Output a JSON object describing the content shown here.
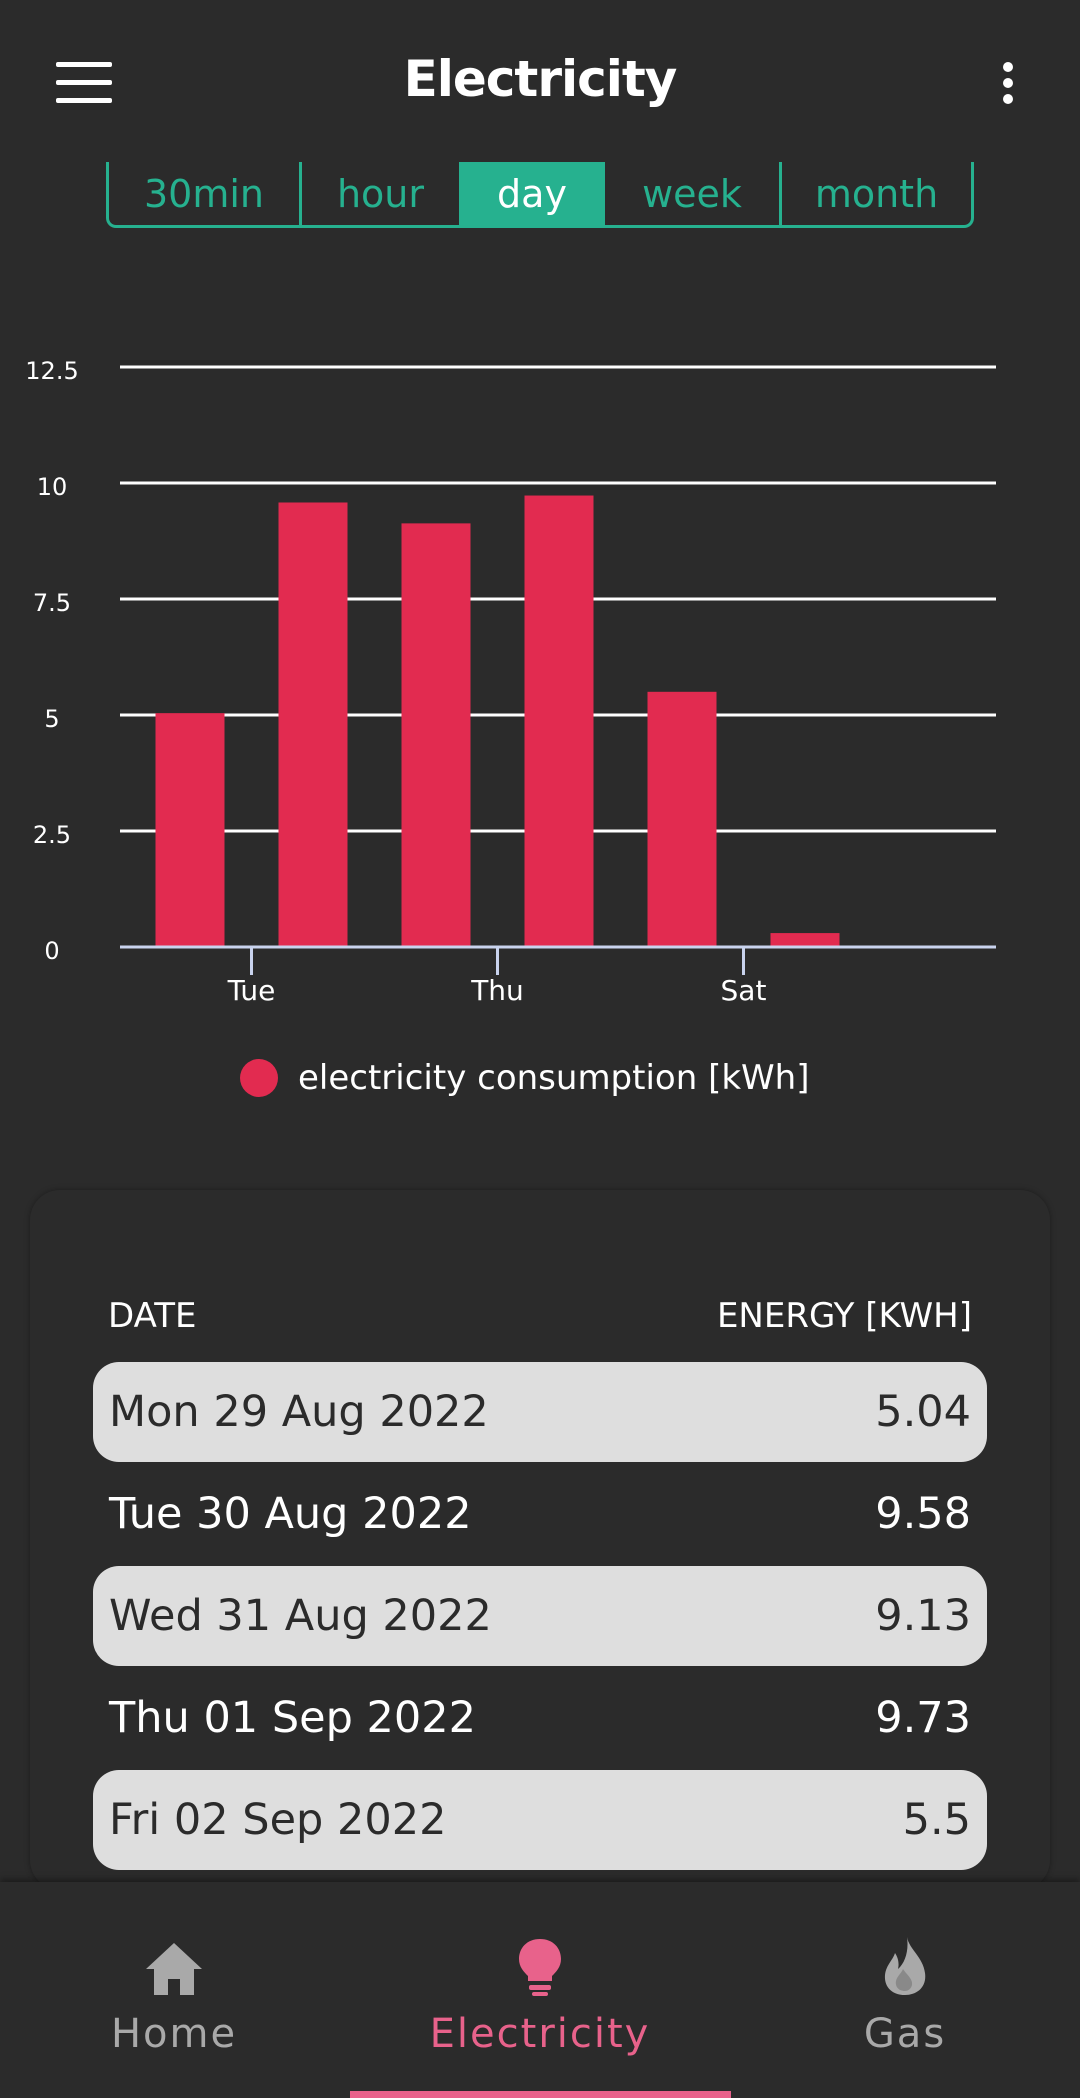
{
  "header": {
    "title": "Electricity",
    "menu_icon": "hamburger-menu-icon",
    "more_icon": "more-vertical-icon"
  },
  "tabs": [
    {
      "label": "30min",
      "active": false
    },
    {
      "label": "hour",
      "active": false
    },
    {
      "label": "day",
      "active": true
    },
    {
      "label": "week",
      "active": false
    },
    {
      "label": "month",
      "active": false
    }
  ],
  "chart_data": {
    "type": "bar",
    "categories": [
      "Mon",
      "Tue",
      "Wed",
      "Thu",
      "Fri",
      "Sat"
    ],
    "tick_labels": [
      "Tue",
      "Thu",
      "Sat"
    ],
    "series": [
      {
        "name": "electricity consumption [kWh]",
        "values": [
          5.04,
          9.58,
          9.13,
          9.73,
          5.5,
          0.3
        ],
        "color": "#e22b50"
      }
    ],
    "yticks": [
      "0",
      "2.5",
      "5",
      "7.5",
      "10",
      "12.5"
    ],
    "ylim": [
      0,
      12.5
    ],
    "grid": true,
    "legend": "bottom"
  },
  "table": {
    "headers": {
      "date": "DATE",
      "energy": "ENERGY [KWH]"
    },
    "rows": [
      {
        "date": "Mon 29 Aug 2022",
        "energy": "5.04"
      },
      {
        "date": "Tue 30 Aug 2022",
        "energy": "9.58"
      },
      {
        "date": "Wed 31 Aug 2022",
        "energy": "9.13"
      },
      {
        "date": "Thu 01 Sep 2022",
        "energy": "9.73"
      },
      {
        "date": "Fri 02 Sep 2022",
        "energy": "5.5"
      }
    ]
  },
  "bottom_nav": [
    {
      "label": "Home",
      "icon": "home-icon",
      "active": false
    },
    {
      "label": "Electricity",
      "icon": "lightbulb-icon",
      "active": true
    },
    {
      "label": "Gas",
      "icon": "flame-icon",
      "active": false
    }
  ],
  "colors": {
    "accent": "#26b18f",
    "bar": "#e22b50",
    "nav_active": "#e8628b",
    "nav_inactive": "#a9a9a9",
    "background": "#2b2b2b"
  }
}
